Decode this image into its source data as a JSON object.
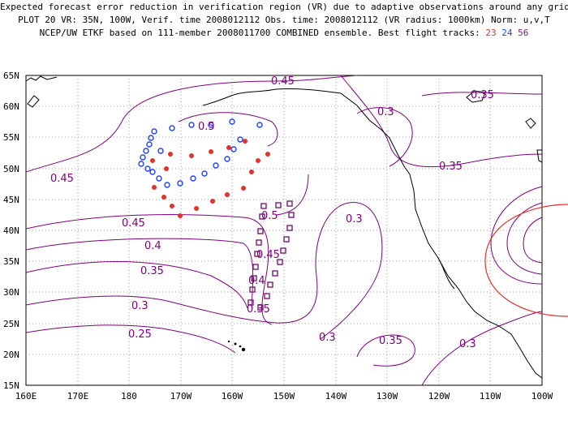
{
  "header": {
    "line1": "Expected forecast error reduction in verification region (VR) due to adaptive observations around any grid point.",
    "line2": "PLOT 20 VR: 35N, 100W, Verif. time 2008012112 Obs. time: 2008012112 (VR radius: 1000km) Norm: u,v,T",
    "line3": "NCEP/UW ETKF based on 111-member 2008011700 COMBINED ensemble.  Best flight tracks:",
    "track_23": "23",
    "track_24": "24",
    "track_56": "56"
  },
  "axes": {
    "lat_labels": [
      "65N",
      "60N",
      "55N",
      "50N",
      "45N",
      "40N",
      "35N",
      "30N",
      "25N",
      "20N",
      "15N"
    ],
    "lon_labels": [
      "160E",
      "170E",
      "180",
      "170W",
      "160W",
      "150W",
      "140W",
      "130W",
      "120W",
      "110W",
      "100W"
    ]
  },
  "contour_labels": [
    "0.45",
    "0.35",
    "0.5",
    "0.3",
    "0.45",
    "0.35",
    "0.3",
    "0.45",
    "0.5",
    "0.4",
    "0.45",
    "0.35",
    "0.4",
    "0.3",
    "0.35",
    "0.25",
    "0.3",
    "0.35",
    "0.3"
  ],
  "colors": {
    "contour": "#800080",
    "track_23": "#e8302a",
    "track_24": "#2040ff",
    "track_56": "#7a1a7a",
    "verification_region": "#e8302a",
    "grid": "#888888",
    "coast": "#000000"
  }
}
